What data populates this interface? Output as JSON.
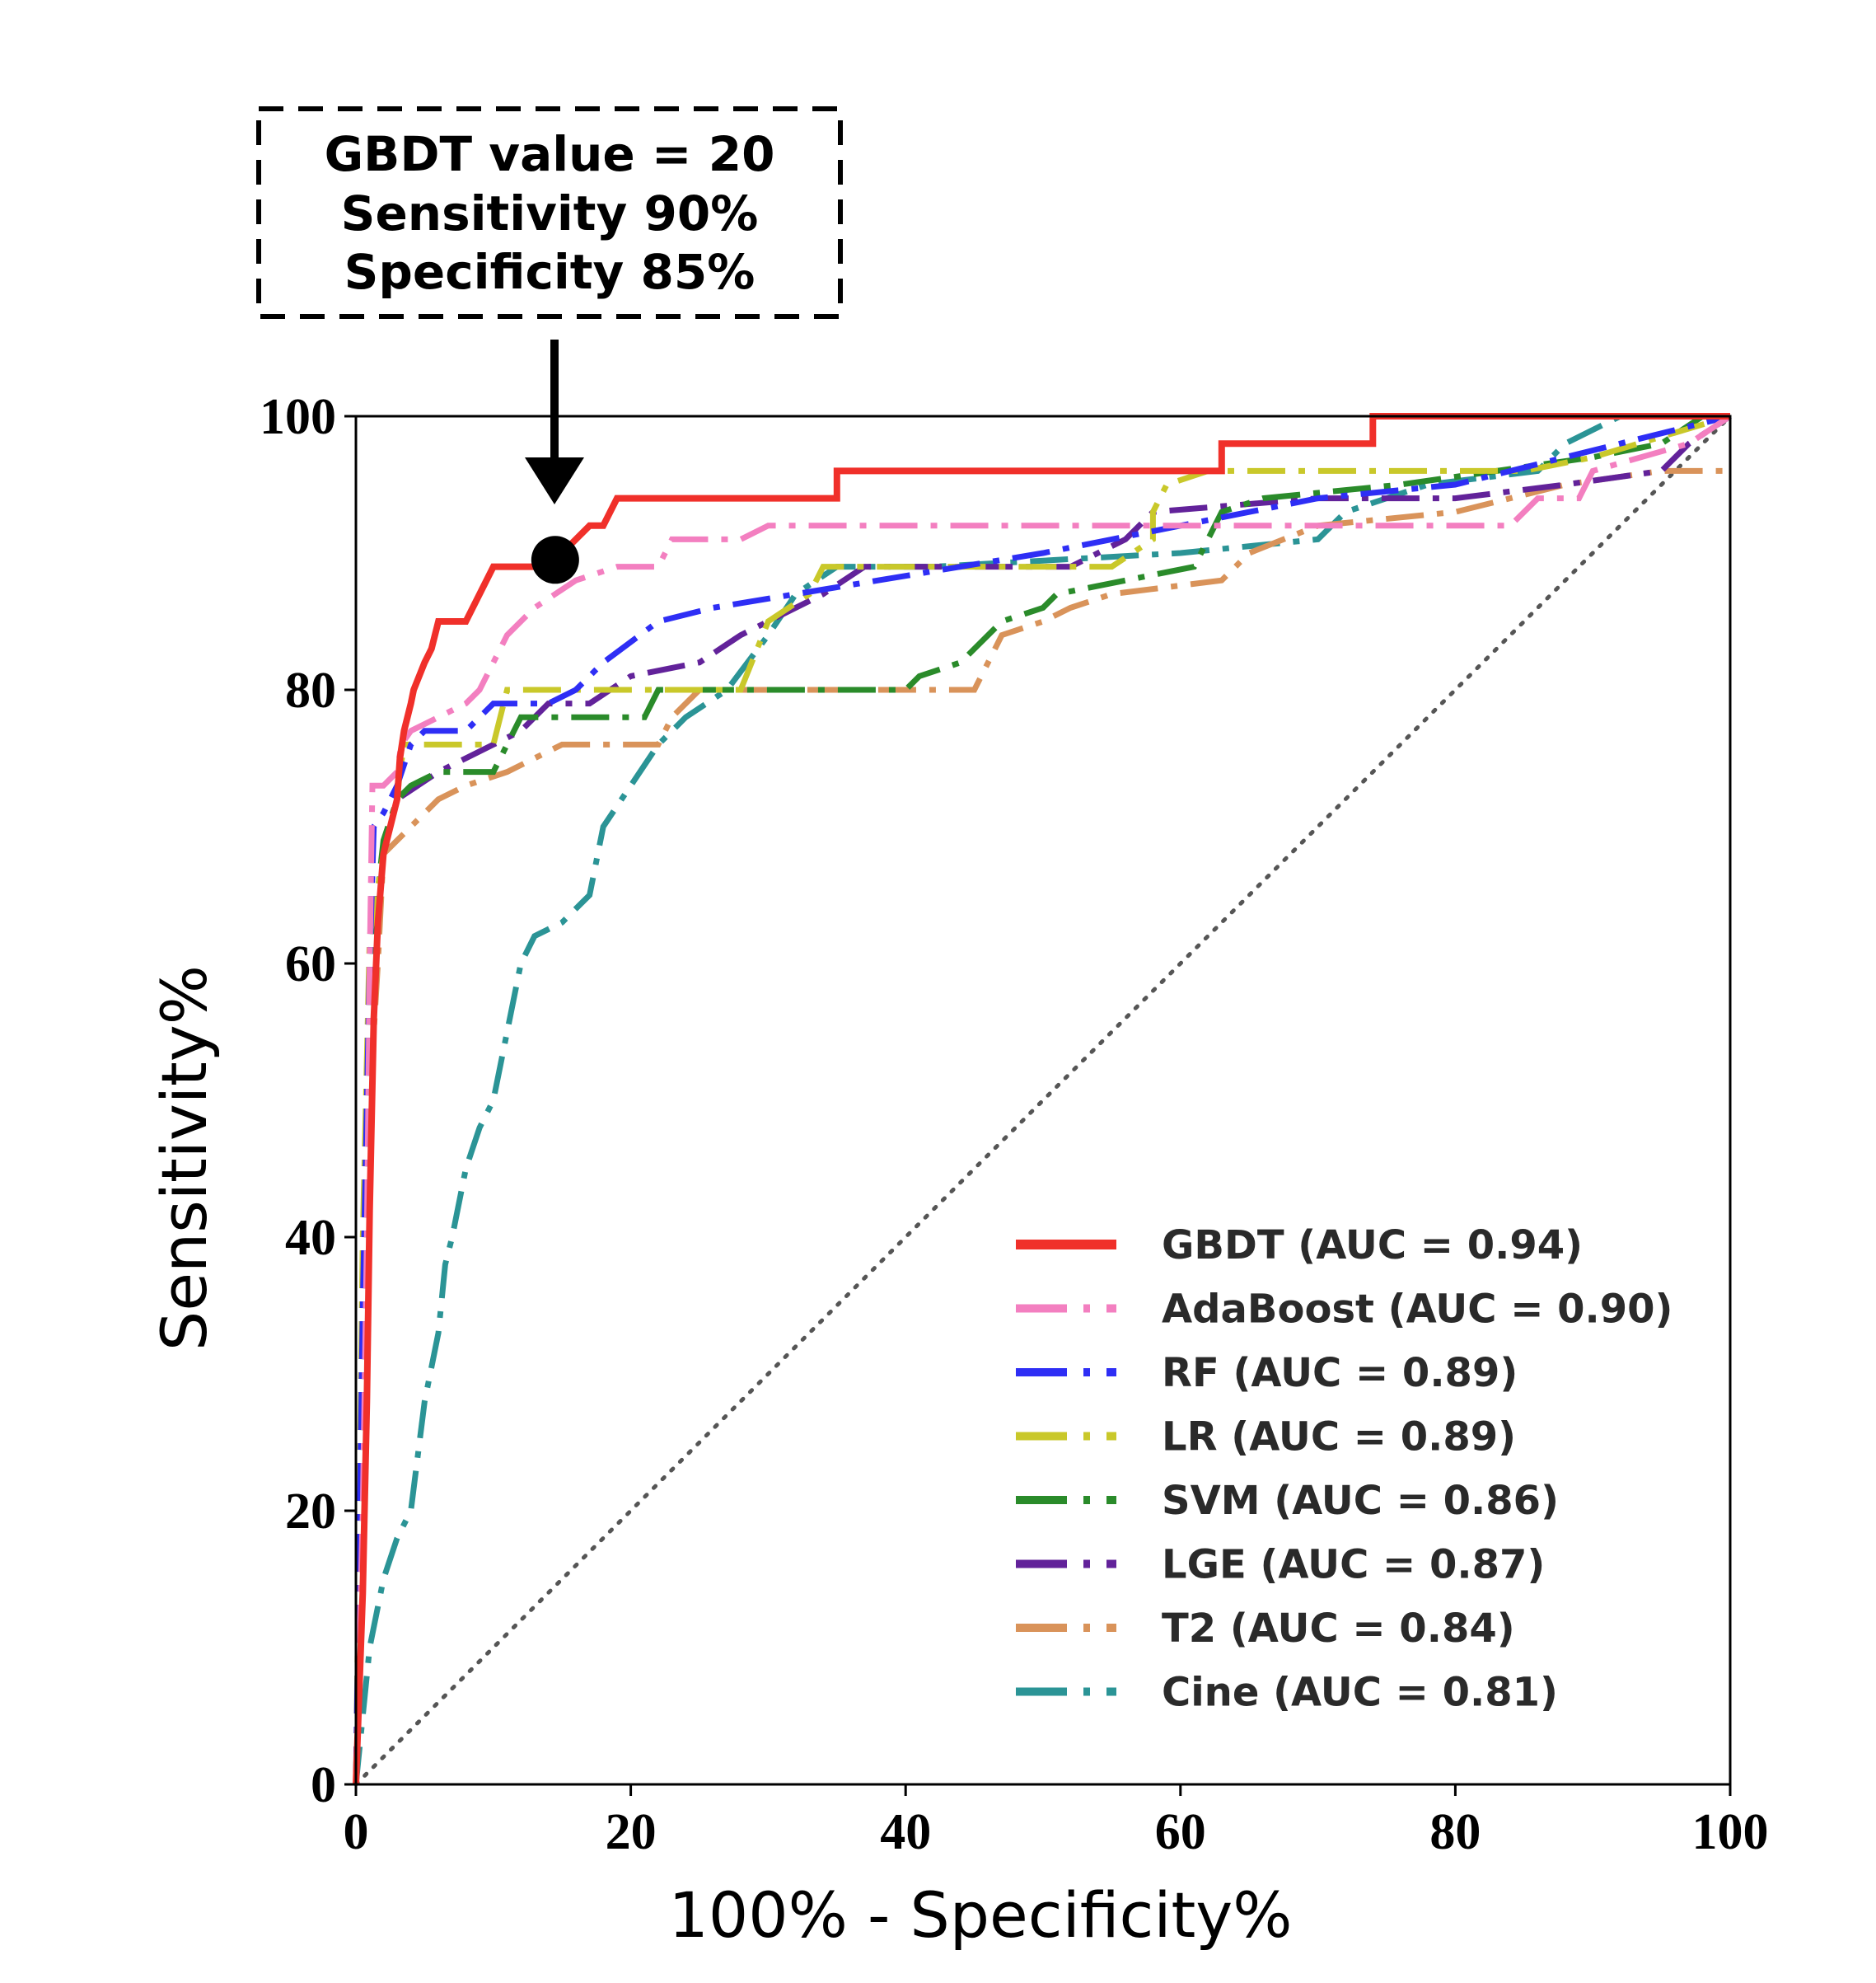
{
  "chart_data": {
    "type": "line",
    "xlabel": "100% - Specificity%",
    "ylabel": "Sensitivity%",
    "xlim": [
      0,
      100
    ],
    "ylim": [
      0,
      100
    ],
    "xticks": [
      "0",
      "20",
      "40",
      "60",
      "80",
      "100"
    ],
    "yticks": [
      "0",
      "20",
      "40",
      "60",
      "80",
      "100"
    ],
    "grid": false,
    "legend_position": "bottom-right",
    "reference_line": {
      "style": "dotted",
      "color": "#555555",
      "points": [
        [
          0,
          0
        ],
        [
          100,
          100
        ]
      ]
    },
    "annotation": {
      "lines": [
        "GBDT value = 20",
        "Sensitivity 90%",
        "Specificity 85%"
      ],
      "point": [
        14.5,
        89.5
      ],
      "box_style": "dashed"
    },
    "series": [
      {
        "name": "GBDT (AUC = 0.94)",
        "color": "#f0302a",
        "dash": "solid",
        "points": [
          [
            0,
            0
          ],
          [
            0.5,
            14
          ],
          [
            0.8,
            28
          ],
          [
            1,
            42
          ],
          [
            1.3,
            56
          ],
          [
            1.6,
            63
          ],
          [
            2,
            68
          ],
          [
            3,
            72
          ],
          [
            3.2,
            75
          ],
          [
            3.5,
            77
          ],
          [
            4,
            79
          ],
          [
            4.2,
            80
          ],
          [
            5,
            82
          ],
          [
            5.5,
            83
          ],
          [
            6,
            85
          ],
          [
            8,
            85
          ],
          [
            9,
            87
          ],
          [
            10,
            89
          ],
          [
            13,
            89
          ],
          [
            14.5,
            89.5
          ],
          [
            16,
            91
          ],
          [
            17,
            92
          ],
          [
            18,
            92
          ],
          [
            19,
            94
          ],
          [
            25,
            94
          ],
          [
            35,
            94
          ],
          [
            35,
            96
          ],
          [
            61,
            96
          ],
          [
            63,
            96
          ],
          [
            63,
            98
          ],
          [
            74,
            98
          ],
          [
            74,
            100
          ],
          [
            100,
            100
          ]
        ]
      },
      {
        "name": "AdaBoost (AUC = 0.90)",
        "color": "#f37fc0",
        "dash": "dashdot",
        "points": [
          [
            0,
            0
          ],
          [
            0.5,
            20
          ],
          [
            0.8,
            40
          ],
          [
            1,
            60
          ],
          [
            1.2,
            73
          ],
          [
            2,
            73
          ],
          [
            3,
            74
          ],
          [
            3.3,
            76
          ],
          [
            4,
            77
          ],
          [
            6,
            78
          ],
          [
            8,
            79
          ],
          [
            9,
            80
          ],
          [
            10,
            82
          ],
          [
            11,
            84
          ],
          [
            13,
            86
          ],
          [
            16,
            88
          ],
          [
            19,
            89
          ],
          [
            22,
            89
          ],
          [
            23,
            91
          ],
          [
            28,
            91
          ],
          [
            30,
            92
          ],
          [
            55,
            92
          ],
          [
            84,
            92
          ],
          [
            86,
            94
          ],
          [
            89,
            94
          ],
          [
            90,
            96
          ],
          [
            97,
            98
          ],
          [
            100,
            100
          ]
        ]
      },
      {
        "name": "RF (AUC = 0.89)",
        "color": "#2e2ef5",
        "dash": "dashdot",
        "points": [
          [
            0,
            0
          ],
          [
            0.5,
            35
          ],
          [
            1,
            60
          ],
          [
            1.3,
            70
          ],
          [
            2,
            71
          ],
          [
            3,
            73
          ],
          [
            4,
            76
          ],
          [
            5,
            77
          ],
          [
            8,
            77
          ],
          [
            9,
            78
          ],
          [
            10,
            79
          ],
          [
            12,
            79
          ],
          [
            14,
            79
          ],
          [
            16,
            80
          ],
          [
            18,
            82
          ],
          [
            22,
            85
          ],
          [
            26,
            86
          ],
          [
            32,
            87
          ],
          [
            38,
            88
          ],
          [
            44,
            89
          ],
          [
            50,
            90
          ],
          [
            55,
            91
          ],
          [
            60,
            92
          ],
          [
            70,
            94
          ],
          [
            80,
            95
          ],
          [
            88,
            97
          ],
          [
            96,
            99
          ],
          [
            100,
            100
          ]
        ]
      },
      {
        "name": "LR (AUC = 0.89)",
        "color": "#c9c82a",
        "dash": "dashdot",
        "points": [
          [
            0,
            0
          ],
          [
            0.5,
            40
          ],
          [
            1,
            62
          ],
          [
            2,
            68
          ],
          [
            3,
            72
          ],
          [
            3.2,
            74
          ],
          [
            3.5,
            76
          ],
          [
            10,
            76
          ],
          [
            11,
            80
          ],
          [
            28,
            80
          ],
          [
            30,
            85
          ],
          [
            33,
            87
          ],
          [
            34,
            89
          ],
          [
            55,
            89
          ],
          [
            58,
            91
          ],
          [
            58,
            93
          ],
          [
            59,
            95
          ],
          [
            62,
            96
          ],
          [
            85,
            96
          ],
          [
            90,
            97
          ],
          [
            100,
            100
          ]
        ]
      },
      {
        "name": "SVM (AUC = 0.86)",
        "color": "#2a8b2a",
        "dash": "dashdot",
        "points": [
          [
            0,
            0
          ],
          [
            0.5,
            30
          ],
          [
            1,
            60
          ],
          [
            2,
            69
          ],
          [
            3,
            72
          ],
          [
            4,
            73
          ],
          [
            6,
            74
          ],
          [
            10,
            74
          ],
          [
            11,
            76
          ],
          [
            12,
            78
          ],
          [
            21,
            78
          ],
          [
            22,
            80
          ],
          [
            40,
            80
          ],
          [
            41,
            81
          ],
          [
            44,
            82
          ],
          [
            46,
            84
          ],
          [
            47,
            85
          ],
          [
            50,
            86
          ],
          [
            51,
            87
          ],
          [
            61,
            89
          ],
          [
            63,
            93
          ],
          [
            66,
            94
          ],
          [
            76,
            95
          ],
          [
            90,
            97
          ],
          [
            95,
            98
          ],
          [
            98,
            100
          ],
          [
            100,
            100
          ]
        ]
      },
      {
        "name": "LGE (AUC = 0.87)",
        "color": "#62229a",
        "dash": "dashdot",
        "points": [
          [
            0,
            0
          ],
          [
            0.5,
            20
          ],
          [
            1,
            50
          ],
          [
            1.5,
            64
          ],
          [
            2,
            68
          ],
          [
            3,
            72
          ],
          [
            6,
            74
          ],
          [
            8,
            75
          ],
          [
            10,
            76
          ],
          [
            12,
            77
          ],
          [
            14,
            79
          ],
          [
            17,
            79
          ],
          [
            20,
            81
          ],
          [
            25,
            82
          ],
          [
            28,
            84
          ],
          [
            30,
            85
          ],
          [
            34,
            87
          ],
          [
            37,
            89
          ],
          [
            52,
            89
          ],
          [
            56,
            91
          ],
          [
            58,
            93
          ],
          [
            70,
            94
          ],
          [
            80,
            94
          ],
          [
            88,
            95
          ],
          [
            95,
            96
          ],
          [
            97,
            98
          ],
          [
            100,
            100
          ]
        ]
      },
      {
        "name": "T2 (AUC = 0.84)",
        "color": "#d9935a",
        "dash": "dashdot",
        "points": [
          [
            0,
            0
          ],
          [
            0.5,
            30
          ],
          [
            1,
            50
          ],
          [
            1.6,
            60
          ],
          [
            2,
            68
          ],
          [
            4,
            70
          ],
          [
            6,
            72
          ],
          [
            8,
            73
          ],
          [
            11,
            74
          ],
          [
            13,
            75
          ],
          [
            15,
            76
          ],
          [
            22,
            76
          ],
          [
            23,
            78
          ],
          [
            25,
            80
          ],
          [
            45,
            80
          ],
          [
            46,
            82
          ],
          [
            47,
            84
          ],
          [
            50,
            85
          ],
          [
            52,
            86
          ],
          [
            55,
            87
          ],
          [
            63,
            88
          ],
          [
            65,
            90
          ],
          [
            70,
            92
          ],
          [
            80,
            93
          ],
          [
            88,
            95
          ],
          [
            95,
            96
          ],
          [
            100,
            96
          ]
        ]
      },
      {
        "name": "Cine (AUC = 0.81)",
        "color": "#2b9496",
        "dash": "dashdot",
        "points": [
          [
            0,
            0
          ],
          [
            0.5,
            5
          ],
          [
            1,
            10
          ],
          [
            2,
            15
          ],
          [
            3,
            18
          ],
          [
            4,
            20
          ],
          [
            5,
            28
          ],
          [
            6,
            33
          ],
          [
            6.5,
            38
          ],
          [
            7,
            40
          ],
          [
            8,
            45
          ],
          [
            9,
            48
          ],
          [
            10,
            50
          ],
          [
            11,
            55
          ],
          [
            12,
            60
          ],
          [
            13,
            62
          ],
          [
            15,
            63
          ],
          [
            17,
            65
          ],
          [
            18,
            70
          ],
          [
            20,
            73
          ],
          [
            22,
            76
          ],
          [
            24,
            78
          ],
          [
            27,
            80
          ],
          [
            30,
            84
          ],
          [
            32,
            87
          ],
          [
            35,
            89
          ],
          [
            42,
            89
          ],
          [
            60,
            90
          ],
          [
            70,
            91
          ],
          [
            72,
            93
          ],
          [
            78,
            95
          ],
          [
            86,
            96
          ],
          [
            88,
            98
          ],
          [
            92,
            100
          ],
          [
            100,
            100
          ]
        ]
      }
    ]
  }
}
